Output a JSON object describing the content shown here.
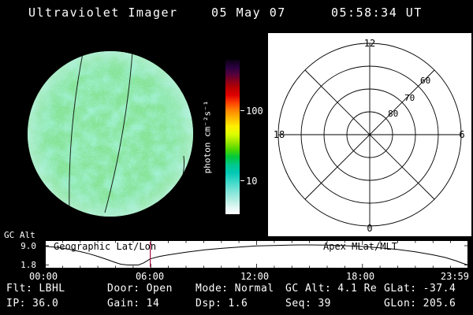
{
  "header": {
    "title": "Ultraviolet Imager",
    "date": "05 May 07",
    "time": "05:58:34 UT"
  },
  "status": {
    "row1": [
      {
        "label": "Flt:",
        "value": "LBHL"
      },
      {
        "label": "Door:",
        "value": "Open"
      },
      {
        "label": "Mode:",
        "value": "Normal"
      },
      {
        "label": "GC Alt:",
        "value": "4.1 Re"
      },
      {
        "label": "GLat:",
        "value": "-37.4"
      }
    ],
    "row2": [
      {
        "label": "IP:",
        "value": "36.0"
      },
      {
        "label": "Gain:",
        "value": "14"
      },
      {
        "label": "Dsp:",
        "value": "1.6"
      },
      {
        "label": "Seq:",
        "value": "39"
      },
      {
        "label": "GLon:",
        "value": "205.6"
      }
    ]
  },
  "chart_data": [
    {
      "type": "line",
      "title": "Spacecraft geocentric altitude vs universal time",
      "ylabel": "GC Alt",
      "ytick_labels": [
        "9.0",
        "1.8"
      ],
      "ylim": [
        1.8,
        9.0
      ],
      "xtick_labels": [
        "00:00",
        "06:00",
        "12:00",
        "18:00",
        "23:59"
      ],
      "xlim_hours": [
        0,
        24
      ],
      "annotation_left": "Geographic Lat/Lon",
      "annotation_right": "Apex MLat/MLT",
      "marker_hour": 5.97,
      "marker_color": "#aa1144",
      "x": [
        0,
        0.5,
        1,
        1.5,
        2,
        2.5,
        3,
        3.5,
        4,
        4.3,
        4.7,
        5,
        5.3,
        5.6,
        5.97,
        6.5,
        7,
        8,
        9,
        10,
        11,
        12,
        13,
        14,
        15,
        16,
        17,
        18,
        19,
        20,
        21,
        22,
        22.7,
        23.3,
        23.7,
        23.98
      ],
      "y": [
        8.8,
        8.5,
        8.1,
        7.5,
        6.8,
        6.0,
        5.0,
        3.9,
        2.7,
        2.1,
        1.8,
        1.8,
        1.8,
        2.6,
        4.1,
        5.0,
        5.6,
        6.6,
        7.4,
        8.0,
        8.5,
        8.9,
        9.1,
        9.25,
        9.3,
        9.2,
        9.0,
        8.7,
        8.2,
        7.6,
        6.7,
        5.6,
        4.6,
        3.4,
        2.4,
        1.8
      ]
    },
    {
      "type": "heatmap",
      "title": "UVI auroral image disk",
      "description": "Circular detector image, mottled green-cyan low uniform flux, with geographic meridian lines",
      "colorbar_label": "photon cm⁻²s⁻¹",
      "colorbar_ticks": [
        "100",
        "10"
      ],
      "colorbar_scale": "log",
      "base_color": "#7fe092"
    },
    {
      "type": "scatter",
      "title": "Apex MLat/MLT polar grid",
      "points": [],
      "ring_mlats": [
        80,
        70,
        60,
        50
      ],
      "ring_labels": [
        "60",
        "70",
        "80"
      ],
      "mlt_labels": {
        "top": "12",
        "left": "18",
        "right": "6",
        "bottom": "0"
      }
    }
  ]
}
